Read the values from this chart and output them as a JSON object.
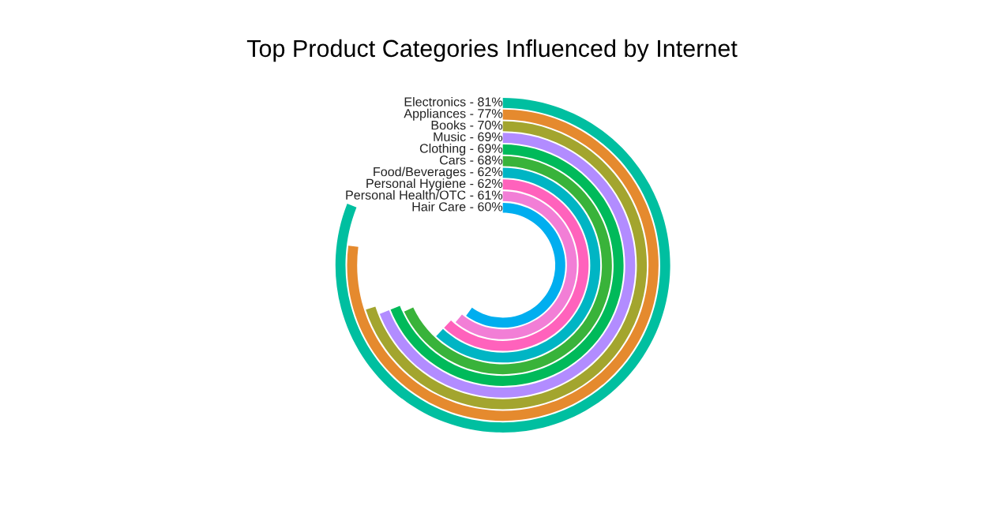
{
  "chart_data": {
    "type": "other",
    "title": "Top Product Categories Influenced by Internet",
    "categories": [
      "Electronics -",
      "Appliances -",
      "Books -",
      "Music -",
      "Clothing -",
      "Cars -",
      "Food/Beverages -",
      "Personal Hygiene -",
      "Personal Health/OTC -",
      "Hair Care -"
    ],
    "values": [
      81,
      77,
      70,
      69,
      69,
      68,
      62,
      62,
      61,
      60
    ],
    "value_labels": [
      "81%",
      "77%",
      "70%",
      "69%",
      "69%",
      "68%",
      "62%",
      "62%",
      "61%",
      "60%"
    ],
    "colors": [
      "#00bfa0",
      "#e58a2e",
      "#a3a52e",
      "#b28cff",
      "#00ba5a",
      "#39b33a",
      "#00b5c4",
      "#ff62bc",
      "#f27ed6",
      "#00aeef"
    ]
  }
}
